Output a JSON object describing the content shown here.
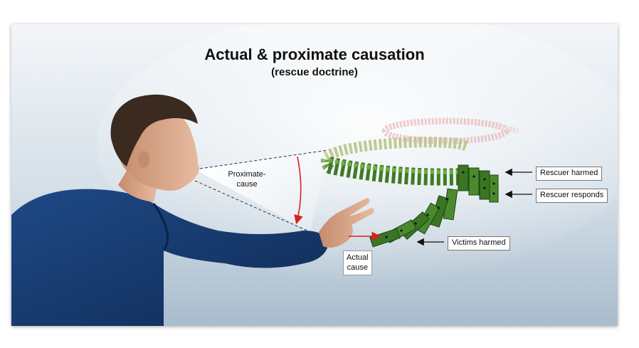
{
  "title": "Actual & proximate causation",
  "subtitle": "(rescue doctrine)",
  "labels": {
    "proximate_cause": "Proximate-\ncause",
    "actual_cause": "Actual\ncause",
    "rescuer_harmed": "Rescuer harmed",
    "rescuer_responds": "Rescuer responds",
    "victims_harmed": "Victims harmed"
  },
  "colors": {
    "background_top": "#f3f6f9",
    "background_bottom": "#a9bccd",
    "sweater": "#16386b",
    "skin": "#d9a88a",
    "hair": "#3a2a1f",
    "domino": "#4d8a2c",
    "arrow_red": "#d8201f",
    "arrow_black": "#111111"
  }
}
